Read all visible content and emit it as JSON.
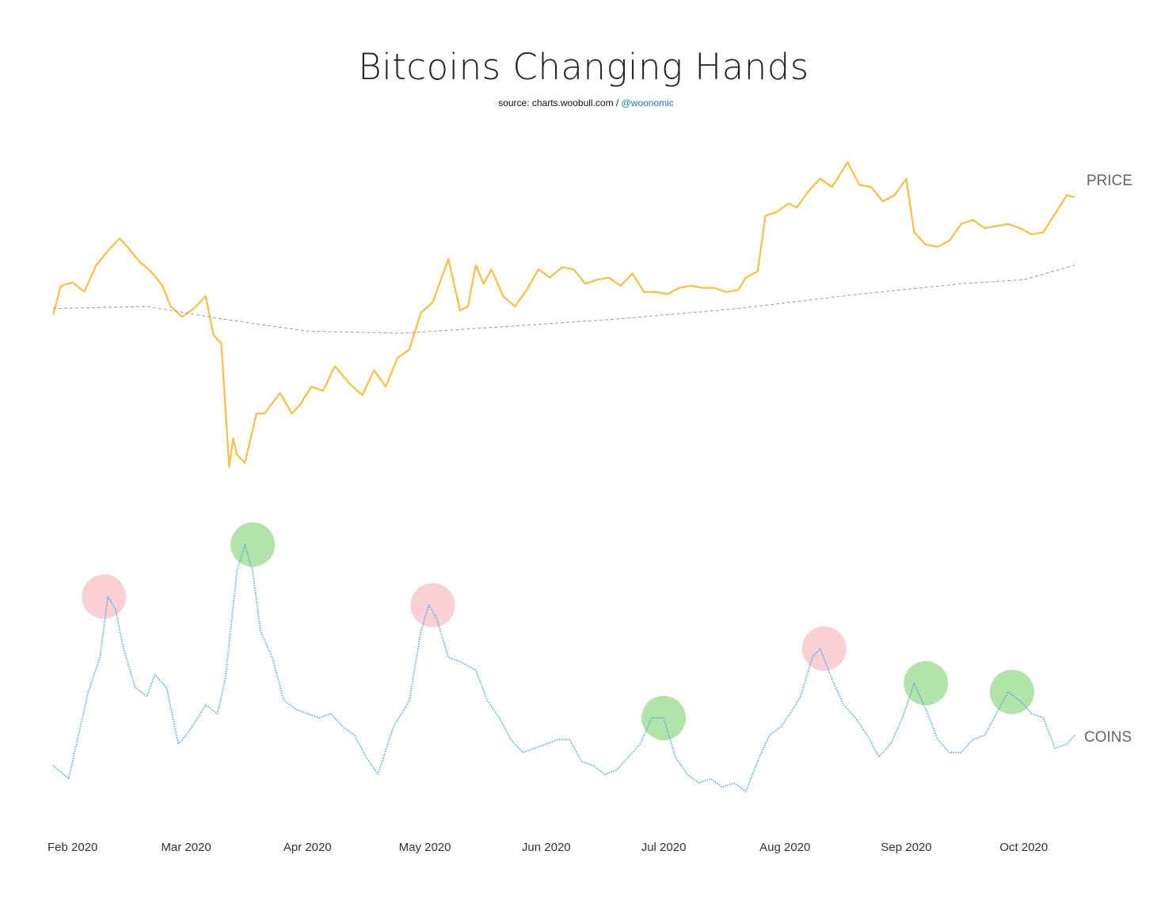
{
  "chart_data": {
    "type": "line",
    "title": "Bitcoins Changing Hands",
    "subtitle_prefix": "source: charts.woobull.com / ",
    "subtitle_handle": "@woonomic",
    "x_ticks": [
      "Feb 2020",
      "Mar 2020",
      "Apr 2020",
      "May 2020",
      "Jun 2020",
      "Jul 2020",
      "Aug 2020",
      "Sep 2020",
      "Oct 2020"
    ],
    "x_range": [
      "2020-01-27",
      "2020-10-15"
    ],
    "colors": {
      "price": "#f5c044",
      "coins": "#4aa8e0",
      "ma": "#999999",
      "red_marker": "#f9c8d0",
      "green_marker": "#9fdc94"
    },
    "series": [
      {
        "name": "PRICE",
        "style": "solid",
        "points": [
          [
            "2020-01-27",
            8600
          ],
          [
            "2020-01-29",
            9300
          ],
          [
            "2020-02-01",
            9380
          ],
          [
            "2020-02-04",
            9160
          ],
          [
            "2020-02-07",
            9800
          ],
          [
            "2020-02-10",
            10150
          ],
          [
            "2020-02-13",
            10450
          ],
          [
            "2020-02-15",
            10250
          ],
          [
            "2020-02-18",
            9900
          ],
          [
            "2020-02-21",
            9650
          ],
          [
            "2020-02-24",
            9300
          ],
          [
            "2020-02-26",
            8800
          ],
          [
            "2020-02-29",
            8550
          ],
          [
            "2020-03-03",
            8750
          ],
          [
            "2020-03-06",
            9050
          ],
          [
            "2020-03-08",
            8100
          ],
          [
            "2020-03-10",
            7900
          ],
          [
            "2020-03-12",
            4900
          ],
          [
            "2020-03-13",
            5600
          ],
          [
            "2020-03-14",
            5200
          ],
          [
            "2020-03-16",
            5000
          ],
          [
            "2020-03-19",
            6200
          ],
          [
            "2020-03-21",
            6200
          ],
          [
            "2020-03-23",
            6450
          ],
          [
            "2020-03-25",
            6700
          ],
          [
            "2020-03-28",
            6200
          ],
          [
            "2020-03-30",
            6400
          ],
          [
            "2020-04-02",
            6850
          ],
          [
            "2020-04-05",
            6750
          ],
          [
            "2020-04-08",
            7350
          ],
          [
            "2020-04-12",
            6900
          ],
          [
            "2020-04-15",
            6650
          ],
          [
            "2020-04-18",
            7250
          ],
          [
            "2020-04-21",
            6850
          ],
          [
            "2020-04-24",
            7550
          ],
          [
            "2020-04-27",
            7750
          ],
          [
            "2020-04-30",
            8650
          ],
          [
            "2020-05-03",
            8900
          ],
          [
            "2020-05-07",
            9950
          ],
          [
            "2020-05-10",
            8700
          ],
          [
            "2020-05-12",
            8800
          ],
          [
            "2020-05-14",
            9800
          ],
          [
            "2020-05-16",
            9350
          ],
          [
            "2020-05-18",
            9700
          ],
          [
            "2020-05-21",
            9050
          ],
          [
            "2020-05-24",
            8800
          ],
          [
            "2020-05-27",
            9200
          ],
          [
            "2020-05-30",
            9700
          ],
          [
            "2020-06-02",
            9500
          ],
          [
            "2020-06-05",
            9750
          ],
          [
            "2020-06-08",
            9700
          ],
          [
            "2020-06-11",
            9350
          ],
          [
            "2020-06-14",
            9450
          ],
          [
            "2020-06-17",
            9500
          ],
          [
            "2020-06-20",
            9300
          ],
          [
            "2020-06-23",
            9600
          ],
          [
            "2020-06-26",
            9150
          ],
          [
            "2020-06-29",
            9150
          ],
          [
            "2020-07-02",
            9100
          ],
          [
            "2020-07-05",
            9250
          ],
          [
            "2020-07-08",
            9300
          ],
          [
            "2020-07-11",
            9250
          ],
          [
            "2020-07-14",
            9250
          ],
          [
            "2020-07-17",
            9150
          ],
          [
            "2020-07-20",
            9200
          ],
          [
            "2020-07-22",
            9500
          ],
          [
            "2020-07-25",
            9650
          ],
          [
            "2020-07-27",
            11000
          ],
          [
            "2020-07-30",
            11100
          ],
          [
            "2020-08-02",
            11300
          ],
          [
            "2020-08-04",
            11200
          ],
          [
            "2020-08-07",
            11600
          ],
          [
            "2020-08-10",
            11900
          ],
          [
            "2020-08-13",
            11700
          ],
          [
            "2020-08-17",
            12300
          ],
          [
            "2020-08-20",
            11750
          ],
          [
            "2020-08-23",
            11700
          ],
          [
            "2020-08-26",
            11350
          ],
          [
            "2020-08-29",
            11500
          ],
          [
            "2020-09-01",
            11900
          ],
          [
            "2020-09-03",
            10600
          ],
          [
            "2020-09-06",
            10300
          ],
          [
            "2020-09-09",
            10250
          ],
          [
            "2020-09-12",
            10400
          ],
          [
            "2020-09-15",
            10800
          ],
          [
            "2020-09-18",
            10900
          ],
          [
            "2020-09-21",
            10700
          ],
          [
            "2020-09-24",
            10750
          ],
          [
            "2020-09-27",
            10800
          ],
          [
            "2020-09-30",
            10700
          ],
          [
            "2020-10-03",
            10550
          ],
          [
            "2020-10-06",
            10600
          ],
          [
            "2020-10-09",
            11050
          ],
          [
            "2020-10-12",
            11500
          ],
          [
            "2020-10-14",
            11450
          ]
        ]
      },
      {
        "name": "",
        "style": "dashed",
        "points": [
          [
            "2020-01-27",
            8750
          ],
          [
            "2020-02-20",
            8800
          ],
          [
            "2020-03-10",
            8500
          ],
          [
            "2020-04-01",
            8200
          ],
          [
            "2020-04-25",
            8150
          ],
          [
            "2020-05-20",
            8300
          ],
          [
            "2020-06-20",
            8500
          ],
          [
            "2020-07-20",
            8750
          ],
          [
            "2020-08-20",
            9100
          ],
          [
            "2020-09-15",
            9350
          ],
          [
            "2020-10-01",
            9450
          ],
          [
            "2020-10-14",
            9800
          ]
        ]
      },
      {
        "name": "COINS",
        "style": "dotted",
        "points": [
          [
            "2020-01-27",
            450
          ],
          [
            "2020-01-31",
            420
          ],
          [
            "2020-02-03",
            540
          ],
          [
            "2020-02-05",
            620
          ],
          [
            "2020-02-08",
            700
          ],
          [
            "2020-02-10",
            840
          ],
          [
            "2020-02-12",
            810
          ],
          [
            "2020-02-14",
            720
          ],
          [
            "2020-02-17",
            630
          ],
          [
            "2020-02-20",
            610
          ],
          [
            "2020-02-22",
            660
          ],
          [
            "2020-02-25",
            630
          ],
          [
            "2020-02-28",
            500
          ],
          [
            "2020-03-01",
            520
          ],
          [
            "2020-03-04",
            560
          ],
          [
            "2020-03-06",
            590
          ],
          [
            "2020-03-09",
            570
          ],
          [
            "2020-03-11",
            650
          ],
          [
            "2020-03-14",
            900
          ],
          [
            "2020-03-16",
            960
          ],
          [
            "2020-03-18",
            900
          ],
          [
            "2020-03-20",
            760
          ],
          [
            "2020-03-23",
            700
          ],
          [
            "2020-03-26",
            600
          ],
          [
            "2020-03-29",
            580
          ],
          [
            "2020-04-01",
            570
          ],
          [
            "2020-04-04",
            560
          ],
          [
            "2020-04-07",
            570
          ],
          [
            "2020-04-10",
            540
          ],
          [
            "2020-04-13",
            520
          ],
          [
            "2020-04-16",
            470
          ],
          [
            "2020-04-19",
            430
          ],
          [
            "2020-04-23",
            540
          ],
          [
            "2020-04-27",
            600
          ],
          [
            "2020-04-30",
            760
          ],
          [
            "2020-05-02",
            820
          ],
          [
            "2020-05-04",
            790
          ],
          [
            "2020-05-07",
            700
          ],
          [
            "2020-05-10",
            690
          ],
          [
            "2020-05-14",
            670
          ],
          [
            "2020-05-17",
            600
          ],
          [
            "2020-05-20",
            560
          ],
          [
            "2020-05-23",
            510
          ],
          [
            "2020-05-26",
            480
          ],
          [
            "2020-05-29",
            490
          ],
          [
            "2020-06-01",
            500
          ],
          [
            "2020-06-04",
            510
          ],
          [
            "2020-06-07",
            510
          ],
          [
            "2020-06-10",
            460
          ],
          [
            "2020-06-13",
            450
          ],
          [
            "2020-06-16",
            430
          ],
          [
            "2020-06-19",
            440
          ],
          [
            "2020-06-22",
            470
          ],
          [
            "2020-06-25",
            500
          ],
          [
            "2020-06-28",
            560
          ],
          [
            "2020-07-01",
            560
          ],
          [
            "2020-07-04",
            470
          ],
          [
            "2020-07-07",
            430
          ],
          [
            "2020-07-10",
            410
          ],
          [
            "2020-07-13",
            420
          ],
          [
            "2020-07-16",
            400
          ],
          [
            "2020-07-19",
            410
          ],
          [
            "2020-07-22",
            390
          ],
          [
            "2020-07-25",
            460
          ],
          [
            "2020-07-28",
            520
          ],
          [
            "2020-07-31",
            540
          ],
          [
            "2020-08-03",
            580
          ],
          [
            "2020-08-05",
            610
          ],
          [
            "2020-08-08",
            700
          ],
          [
            "2020-08-10",
            720
          ],
          [
            "2020-08-13",
            650
          ],
          [
            "2020-08-16",
            590
          ],
          [
            "2020-08-19",
            560
          ],
          [
            "2020-08-22",
            520
          ],
          [
            "2020-08-25",
            470
          ],
          [
            "2020-08-28",
            500
          ],
          [
            "2020-08-31",
            560
          ],
          [
            "2020-09-03",
            640
          ],
          [
            "2020-09-06",
            580
          ],
          [
            "2020-09-09",
            510
          ],
          [
            "2020-09-12",
            480
          ],
          [
            "2020-09-15",
            480
          ],
          [
            "2020-09-18",
            510
          ],
          [
            "2020-09-21",
            520
          ],
          [
            "2020-09-24",
            570
          ],
          [
            "2020-09-27",
            620
          ],
          [
            "2020-09-30",
            600
          ],
          [
            "2020-10-03",
            570
          ],
          [
            "2020-10-06",
            560
          ],
          [
            "2020-10-09",
            490
          ],
          [
            "2020-10-12",
            500
          ],
          [
            "2020-10-14",
            520
          ]
        ]
      }
    ],
    "highlight_markers": [
      {
        "date": "2020-02-09",
        "value": 840,
        "color": "red"
      },
      {
        "date": "2020-03-18",
        "value": 960,
        "color": "green"
      },
      {
        "date": "2020-05-03",
        "value": 820,
        "color": "red"
      },
      {
        "date": "2020-07-01",
        "value": 560,
        "color": "green"
      },
      {
        "date": "2020-08-11",
        "value": 720,
        "color": "red"
      },
      {
        "date": "2020-09-06",
        "value": 640,
        "color": "green"
      },
      {
        "date": "2020-09-28",
        "value": 620,
        "color": "green"
      }
    ]
  }
}
